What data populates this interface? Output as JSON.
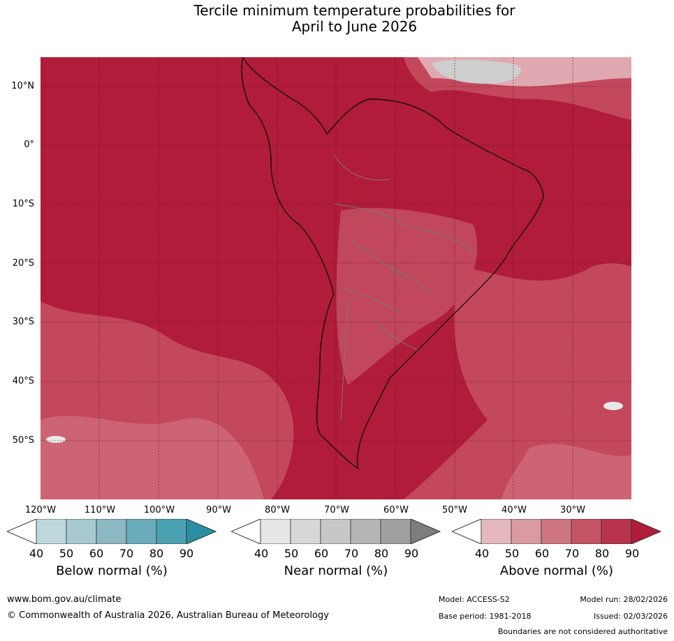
{
  "title_line1": "Tercile minimum temperature probabilities for",
  "title_line2": "April to June 2026",
  "axes": {
    "lat_labels": [
      "10°N",
      "0°",
      "10°S",
      "20°S",
      "30°S",
      "40°S",
      "50°S"
    ],
    "lon_labels": [
      "120°W",
      "110°W",
      "100°W",
      "90°W",
      "80°W",
      "70°W",
      "60°W",
      "50°W",
      "40°W",
      "30°W"
    ]
  },
  "colorbars": [
    {
      "title": "Below normal (%)",
      "ticks": [
        "40",
        "50",
        "60",
        "70",
        "80",
        "90"
      ],
      "colors": [
        "#bdd7dd",
        "#a7c9d0",
        "#8cb8c3",
        "#6aacbc",
        "#4aa1b2",
        "#2a8fa3"
      ]
    },
    {
      "title": "Near normal (%)",
      "ticks": [
        "40",
        "50",
        "60",
        "70",
        "80",
        "90"
      ],
      "colors": [
        "#e6e6e6",
        "#d7d7d7",
        "#c7c7c7",
        "#b5b5b5",
        "#a0a0a0",
        "#7d7d7d"
      ]
    },
    {
      "title": "Above normal (%)",
      "ticks": [
        "40",
        "50",
        "60",
        "70",
        "80",
        "90"
      ],
      "colors": [
        "#e4b8bd",
        "#d99aa2",
        "#cd7580",
        "#c35464",
        "#b8334b",
        "#b01c3a"
      ]
    }
  ],
  "map_colors": {
    "dominant": "#b01c3a",
    "mid": "#bf3c52",
    "light": "#cd6070",
    "pale": "#e0a8b0"
  },
  "footer": {
    "website": "www.bom.gov.au/climate",
    "copyright": "© Commonwealth of Australia 2026, Australian Bureau of Meteorology",
    "model": "Model: ACCESS-S2",
    "base_period": "Base period: 1981-2018",
    "model_run": "Model run: 28/02/2026",
    "issued": "Issued: 02/03/2026",
    "disclaimer": "Boundaries are not considered authoritative"
  }
}
